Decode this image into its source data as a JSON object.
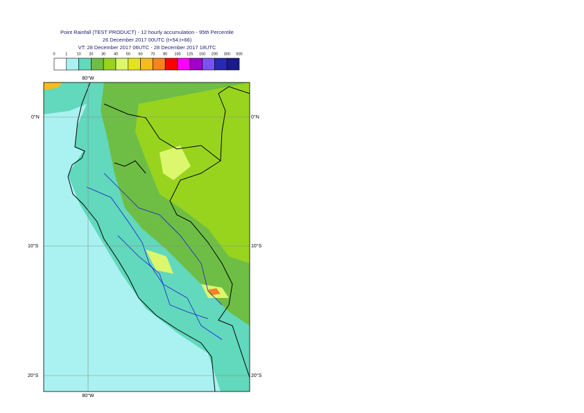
{
  "header": {
    "title_lines": [
      "Point Rainfall (TEST PRODUCT) - 12 hourly accumulation - 95th Percentile",
      "26 December 2017 00UTC (t+54,t+66)",
      "VT: 28 December 2017 06UTC - 28 December 2017 18UTC"
    ]
  },
  "legend": {
    "labels": [
      "0",
      "1",
      "10",
      "20",
      "30",
      "40",
      "50",
      "60",
      "70",
      "80",
      "100",
      "125",
      "150",
      "200",
      "300",
      "500"
    ],
    "colors": [
      "#ffffff",
      "#aaf2f2",
      "#62d8bc",
      "#6ebe46",
      "#98d41e",
      "#dcf76e",
      "#e4e41e",
      "#f4bc1e",
      "#f48420",
      "#ff0000",
      "#ff00ff",
      "#a000c8",
      "#7a52f0",
      "#2828b0",
      "#1a1a8c",
      "#0a0a50"
    ]
  },
  "map": {
    "lon_label": "80°W",
    "lat_labels": [
      "0°N",
      "10°S",
      "20°S"
    ]
  }
}
